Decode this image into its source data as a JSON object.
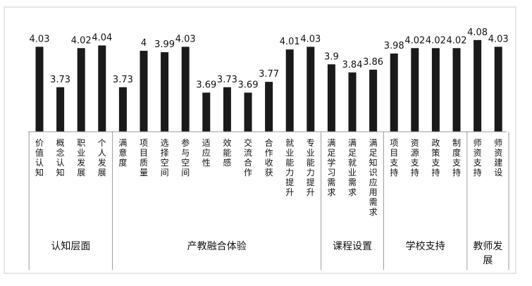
{
  "chart_data": {
    "type": "bar",
    "title": "",
    "xlabel": "",
    "ylabel": "",
    "ylim": [
      3.4,
      4.1
    ],
    "grid": false,
    "legend": "none",
    "bar_color": "#1a1a1a",
    "categories": [
      "价值认知",
      "概念认知",
      "职业发展",
      "个人发展",
      "满意度",
      "项目质量",
      "选择空间",
      "参与空间",
      "适应性",
      "效能感",
      "交流合作",
      "合作收获",
      "就业能力提升",
      "专业能力提升",
      "满足学习需求",
      "满足就业需求",
      "满足知识应用需求",
      "项目支持",
      "资源支持",
      "政策支持",
      "制度支持",
      "师资支持",
      "师资建设"
    ],
    "value_labels": [
      "4.03",
      "3.73",
      "4.02",
      "4.04",
      "3.73",
      "4",
      "3.99",
      "4.03",
      "3.69",
      "3.73",
      "3.69",
      "3.77",
      "4.01",
      "4.03",
      "3.9",
      "3.84",
      "3.86",
      "3.98",
      "4.02",
      "4.02",
      "4.02",
      "4.08",
      "4.03"
    ],
    "values": [
      4.03,
      3.73,
      4.02,
      4.04,
      3.73,
      4.0,
      3.99,
      4.03,
      3.69,
      3.73,
      3.69,
      3.77,
      4.01,
      4.03,
      3.9,
      3.84,
      3.86,
      3.98,
      4.02,
      4.02,
      4.02,
      4.08,
      4.03
    ],
    "groups": [
      {
        "name": "认知层面",
        "start": 0,
        "count": 4
      },
      {
        "name": "产教融合体验",
        "start": 4,
        "count": 10
      },
      {
        "name": "课程设置",
        "start": 14,
        "count": 3
      },
      {
        "name": "学校支持",
        "start": 17,
        "count": 4
      },
      {
        "name": "教师发展",
        "start": 21,
        "count": 2
      }
    ]
  }
}
